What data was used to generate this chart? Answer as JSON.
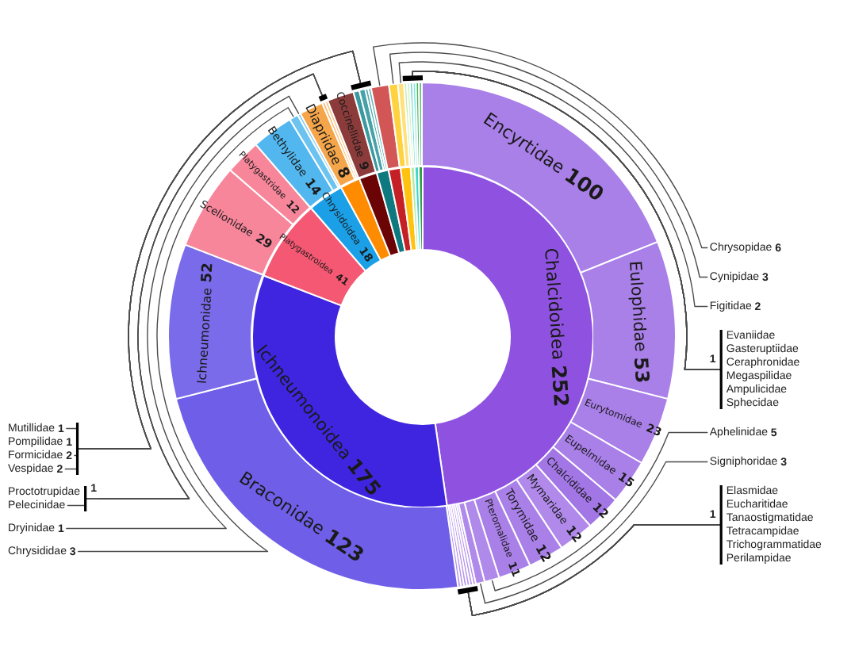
{
  "chart_data": [
    {
      "type": "donut",
      "categories": [
        "Chalcidoidea",
        "Ichneumonoidea",
        "Platygastroidea",
        "Chrysidoidea",
        null,
        null,
        null,
        null,
        null,
        null,
        null,
        null
      ],
      "values": [
        252,
        175,
        41,
        18,
        10,
        9,
        6,
        6,
        5,
        2,
        2,
        2
      ],
      "colors": [
        "#8f52e0",
        "#3f25e0",
        "#f55873",
        "#1b9fe6",
        "#ff8c00",
        "#6b0505",
        "#0e7a80",
        "#c42025",
        "#ffc20e",
        "#b5eaa5",
        "#3dd6cc",
        "#2f9e44"
      ],
      "value_labels": [
        "252",
        "175",
        "41",
        "18",
        null,
        null,
        null,
        null,
        null,
        null,
        null,
        null
      ]
    },
    {
      "type": "donut",
      "categories": [
        "Encyrtidae",
        "Eulophidae",
        "Eurytomidae",
        "Eupelmidae",
        "Chalcididae",
        "Mymaridae",
        "Torymidae",
        "Pteromalidae",
        "Aphelinidae",
        "Signiphoridae",
        "Elasmidae",
        "Eucharitidae",
        "Tanaostigmatidae",
        "Tetracampidae",
        "Trichogrammatidae",
        "Perilampidae",
        "Braconidae",
        "Ichneumonidae",
        "Scelionidae",
        "Platygastridae",
        "Bethylidae",
        "Chrysididae",
        "Dryinidae",
        "Diapriidae",
        "Pelecinidae",
        "Proctotrupidae",
        "Coccinellidae",
        "Vespidae",
        "Formicidae",
        "Pompilidae",
        "Mutillidae",
        "Chrysopidae",
        "Cynipidae",
        "Figitidae",
        "Evaniidae",
        "Gasteruptiidae",
        "Ceraphronidae",
        "Megaspilidae",
        "Ampulicidae",
        "Sphecidae"
      ],
      "values": [
        100,
        53,
        23,
        15,
        12,
        12,
        12,
        11,
        5,
        3,
        1,
        1,
        1,
        1,
        1,
        1,
        123,
        52,
        29,
        12,
        14,
        3,
        1,
        8,
        1,
        1,
        9,
        2,
        2,
        1,
        1,
        6,
        3,
        2,
        1,
        1,
        1,
        1,
        1,
        1
      ],
      "colors": [
        "#a97fe8",
        "#a97fe8",
        "#a97fe8",
        "#a97fe8",
        "#a276e5",
        "#b089eb",
        "#a97fe8",
        "#a97fe8",
        "#b08aea",
        "#b08aea",
        "#b795ec",
        "#b795ec",
        "#b795ec",
        "#b795ec",
        "#b795ec",
        "#b795ec",
        "#6f5fe8",
        "#7a6bea",
        "#f7869b",
        "#f7869b",
        "#52b7ee",
        "#6cc3f0",
        "#84cdf2",
        "#f6a64a",
        "#f8b86a",
        "#f8c484",
        "#8c3b3b",
        "#3b9aa0",
        "#47a2a8",
        "#55aab0",
        "#63b2b8",
        "#d25656",
        "#ffd23f",
        "#ffe07a",
        "#c6eeb6",
        "#d2f2c4",
        "#6fe0d6",
        "#86e6de",
        "#4cb65c",
        "#62c070"
      ],
      "value_labels": [
        "100",
        "53",
        "23",
        "15",
        "12",
        "12",
        "12",
        "11",
        "5",
        "3",
        "1",
        null,
        null,
        null,
        null,
        null,
        "123",
        "52",
        "29",
        "12",
        "14",
        "3",
        "1",
        "8",
        "1",
        null,
        "9",
        "2",
        "2",
        "1",
        "1",
        "6",
        "3",
        "2",
        "1",
        null,
        null,
        null,
        null,
        null
      ]
    }
  ]
}
